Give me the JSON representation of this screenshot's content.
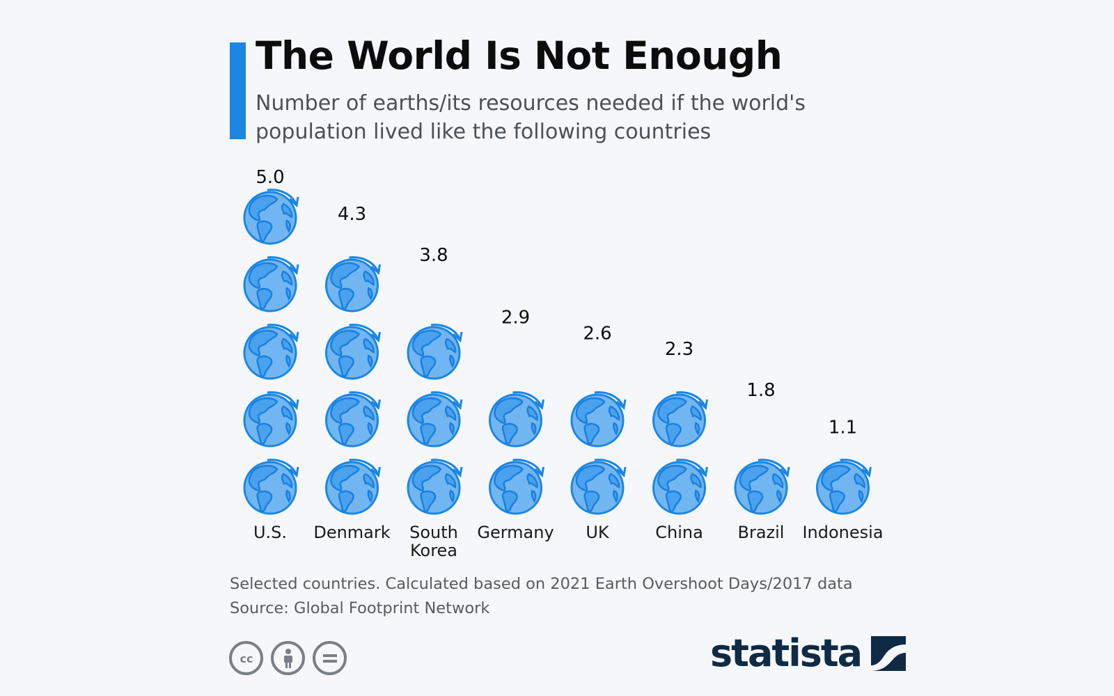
{
  "header": {
    "title": "The World Is Not Enough",
    "subtitle": "Number of earths/its resources needed if the world's population lived like the following countries"
  },
  "chart_data": {
    "type": "bar",
    "unit": "earths",
    "categories": [
      "U.S.",
      "Denmark",
      "South Korea",
      "Germany",
      "UK",
      "China",
      "Brazil",
      "Indonesia"
    ],
    "category_lines": [
      [
        "U.S."
      ],
      [
        "Denmark"
      ],
      [
        "South",
        "Korea"
      ],
      [
        "Germany"
      ],
      [
        "UK"
      ],
      [
        "China"
      ],
      [
        "Brazil"
      ],
      [
        "Indonesia"
      ]
    ],
    "values": [
      5.0,
      4.3,
      3.8,
      2.9,
      2.6,
      2.3,
      1.8,
      1.1
    ],
    "value_labels": [
      "5.0",
      "4.3",
      "3.8",
      "2.9",
      "2.6",
      "2.3",
      "1.8",
      "1.1"
    ],
    "icon": "earth-globe-icon",
    "colors": {
      "globe": "#6fb3f0",
      "globe_stroke": "#1a86e6",
      "accent": "#1a86e6"
    }
  },
  "footer": {
    "note": "Selected countries. Calculated based on 2021 Earth Overshoot Days/2017 data",
    "source": "Source: Global Footprint Network",
    "brand": "statista",
    "license_icons": [
      "cc-icon",
      "attribution-icon",
      "no-derivatives-icon"
    ]
  }
}
